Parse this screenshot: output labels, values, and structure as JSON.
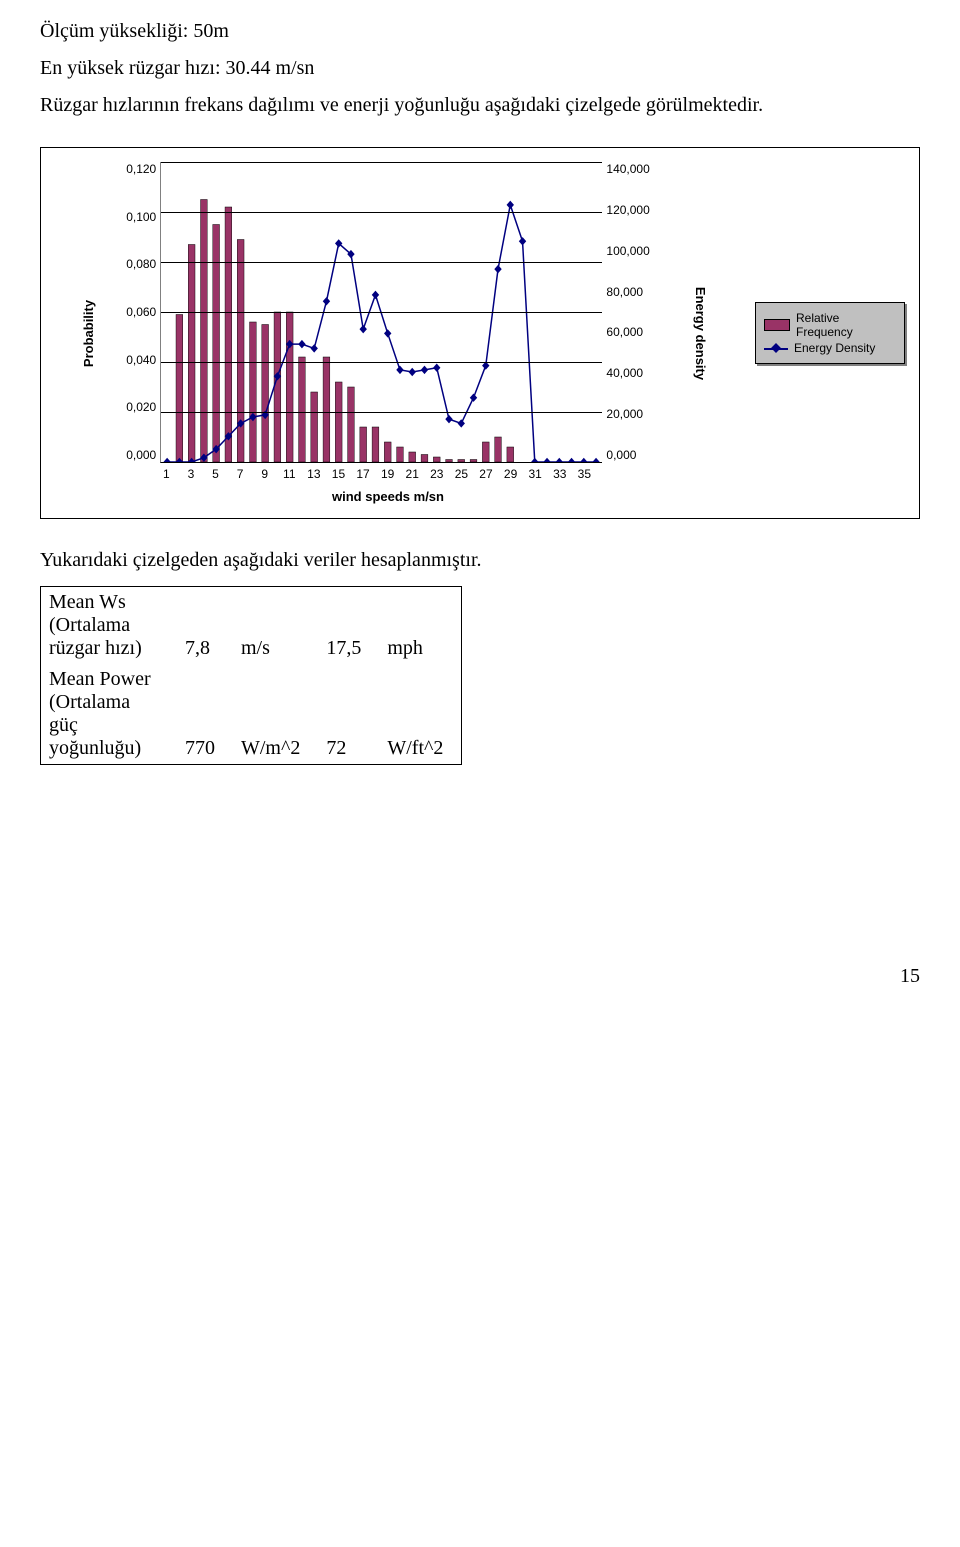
{
  "text": {
    "line1": "Ölçüm yüksekliği: 50m",
    "line2": "En yüksek rüzgar hızı: 30.44 m/sn",
    "line3": "Rüzgar hızlarının frekans dağılımı ve enerji yoğunluğu aşağıdaki çizelgede görülmektedir.",
    "line4": "Yukarıdaki çizelgeden aşağıdaki veriler hesaplanmıştır.",
    "pagenum": "15"
  },
  "chart": {
    "type": "combo-bar-line",
    "xlabel": "wind speeds m/sn",
    "ylabel_left": "Probability",
    "ylabel_right": "Energy density",
    "legend_bar": "Relative Frequency",
    "legend_line": "Energy Density",
    "bar_color": "#993366",
    "line_color": "#000080",
    "grid_color": "#000000",
    "background_color": "#ffffff",
    "legend_bg": "#c0c0c0",
    "y_left": {
      "min": 0.0,
      "max": 0.12,
      "step": 0.02,
      "ticks": [
        "0,120",
        "0,100",
        "0,080",
        "0,060",
        "0,040",
        "0,020",
        "0,000"
      ]
    },
    "y_right": {
      "min": 0,
      "max": 140000,
      "step": 20000,
      "ticks": [
        "140,000",
        "120,000",
        "100,000",
        "80,000",
        "60,000",
        "40,000",
        "20,000",
        "0,000"
      ]
    },
    "x_categories": [
      1,
      2,
      3,
      4,
      5,
      6,
      7,
      8,
      9,
      10,
      11,
      12,
      13,
      14,
      15,
      16,
      17,
      18,
      19,
      20,
      21,
      22,
      23,
      24,
      25,
      26,
      27,
      28,
      29,
      30,
      31,
      32,
      33,
      34,
      35,
      36
    ],
    "x_tick_labels": [
      "1",
      "3",
      "5",
      "7",
      "9",
      "11",
      "13",
      "15",
      "17",
      "19",
      "21",
      "23",
      "25",
      "27",
      "29",
      "31",
      "33",
      "35"
    ],
    "bars": [
      0.0,
      0.059,
      0.087,
      0.105,
      0.095,
      0.102,
      0.089,
      0.056,
      0.055,
      0.06,
      0.06,
      0.042,
      0.028,
      0.042,
      0.032,
      0.03,
      0.014,
      0.014,
      0.008,
      0.006,
      0.004,
      0.003,
      0.002,
      0.001,
      0.001,
      0.001,
      0.008,
      0.01,
      0.006,
      0.0,
      0.0,
      0.0,
      0.0,
      0.0,
      0.0,
      0.0
    ],
    "line": [
      0,
      0,
      0,
      2000,
      6000,
      12000,
      18000,
      21000,
      22000,
      40000,
      55000,
      55000,
      53000,
      75000,
      102000,
      97000,
      62000,
      78000,
      60000,
      43000,
      42000,
      43000,
      44000,
      20000,
      18000,
      30000,
      45000,
      90000,
      120000,
      103000,
      0,
      0,
      0,
      0,
      0,
      0
    ],
    "axis_fontsize": 12,
    "label_fontsize": 13,
    "bar_width": 0.55,
    "marker": "diamond",
    "marker_size": 7
  },
  "table": {
    "rows": [
      {
        "label": "Mean Ws (Ortalama rüzgar hızı)",
        "v1": "7,8",
        "u1": "m/s",
        "v2": "17,5",
        "u2": "mph"
      },
      {
        "label": "Mean Power (Ortalama güç yoğunluğu)",
        "v1": "770",
        "u1": "W/m^2",
        "v2": "72",
        "u2": "W/ft^2"
      }
    ]
  }
}
